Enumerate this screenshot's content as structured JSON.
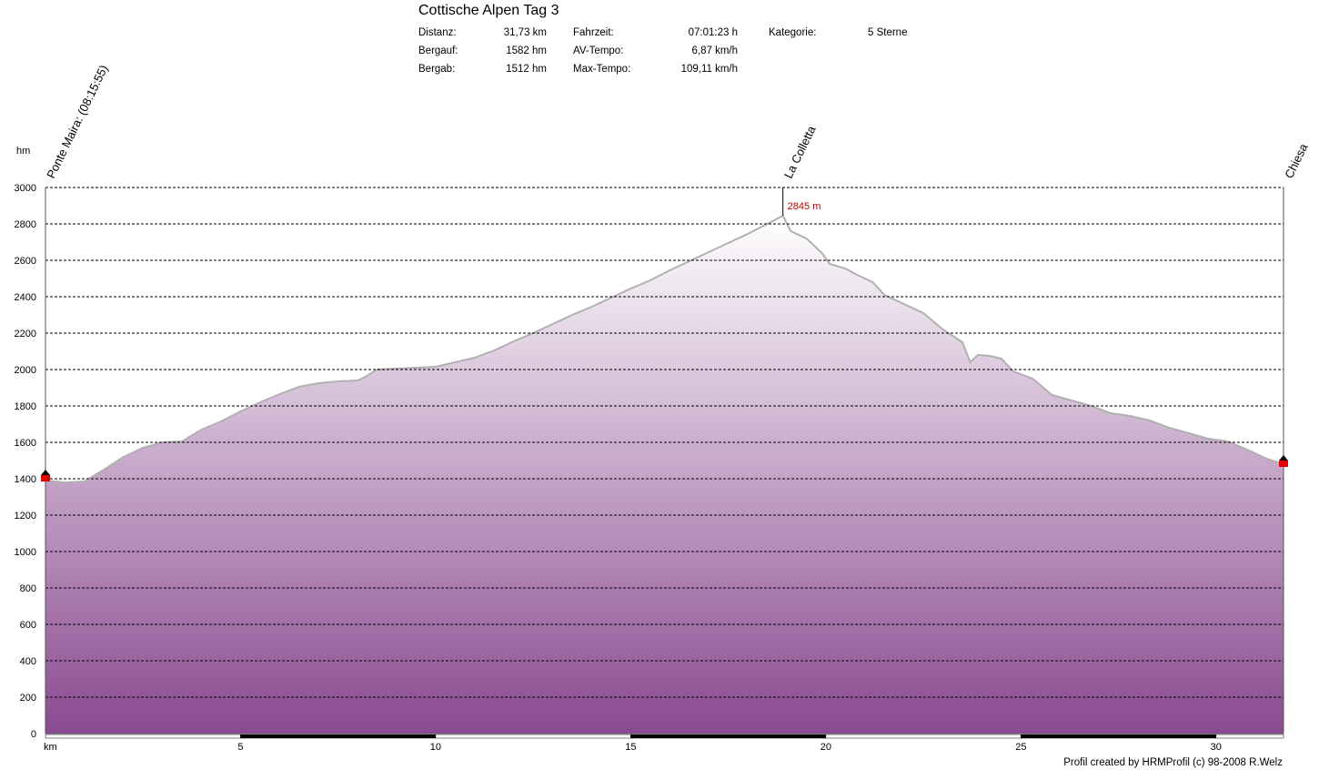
{
  "header": {
    "title": "Cottische Alpen Tag 3",
    "stats": [
      {
        "label": "Distanz:",
        "value": "31,73 km"
      },
      {
        "label": "Bergauf:",
        "value": "1582 hm"
      },
      {
        "label": "Bergab:",
        "value": "1512 hm"
      },
      {
        "label": "Fahrzeit:",
        "value": "07:01:23 h"
      },
      {
        "label": "AV-Tempo:",
        "value": "6,87 km/h"
      },
      {
        "label": "Max-Tempo:",
        "value": "109,11 km/h"
      },
      {
        "label": "Kategorie:",
        "value": "5 Sterne"
      }
    ]
  },
  "footer": {
    "credit": "Profil created by HRMProfil (c) 98-2008 R.Welz"
  },
  "colors": {
    "fill_top": "#ffffff",
    "fill_bottom": "#8a4a90",
    "profile_line": "#b0b0b0",
    "grid": "#000000",
    "marker": "#e00000",
    "peak_label": "#c00000"
  },
  "chart_data": {
    "type": "area",
    "ylabel": "hm",
    "xlabel": "km",
    "xlim": [
      0,
      31.73
    ],
    "ylim": [
      0,
      3000
    ],
    "yticks": [
      "0",
      "200",
      "400",
      "600",
      "800",
      "1000",
      "1200",
      "1400",
      "1600",
      "1800",
      "2000",
      "2200",
      "2400",
      "2600",
      "2800",
      "3000"
    ],
    "xticks": [
      "5",
      "10",
      "15",
      "20",
      "25",
      "30"
    ],
    "grid": true,
    "waypoints": [
      {
        "name": "Ponte Maira: (08:15:55)",
        "km": 0
      },
      {
        "name": "La Colletta",
        "km": 18.9
      },
      {
        "name": "Chiesa",
        "km": 31.73
      }
    ],
    "peak_label": "2845 m",
    "peak": {
      "km": 18.9,
      "elevation": 2845
    },
    "series": [
      {
        "x": [
          0,
          0.5,
          1.0,
          1.5,
          2.0,
          2.5,
          3.0,
          3.5,
          4.0,
          4.5,
          5.0,
          5.5,
          6.0,
          6.5,
          7.0,
          7.5,
          8.0,
          8.2,
          8.5,
          9.0,
          9.5,
          10.0,
          10.5,
          11.0,
          11.5,
          12.0,
          12.5,
          13.0,
          13.5,
          14.0,
          14.5,
          15.0,
          15.5,
          16.0,
          16.5,
          17.0,
          17.5,
          18.0,
          18.5,
          18.9,
          19.1,
          19.5,
          19.9,
          20.1,
          20.5,
          20.8,
          21.2,
          21.5,
          22.0,
          22.5,
          23.0,
          23.5,
          23.7,
          23.9,
          24.2,
          24.5,
          24.8,
          25.3,
          25.8,
          26.3,
          26.8,
          27.3,
          27.8,
          28.3,
          28.8,
          29.3,
          29.8,
          30.3,
          30.8,
          31.3,
          31.73
        ],
        "y": [
          1390,
          1380,
          1385,
          1450,
          1520,
          1570,
          1600,
          1605,
          1670,
          1715,
          1770,
          1820,
          1865,
          1905,
          1925,
          1935,
          1940,
          1960,
          2000,
          2005,
          2010,
          2015,
          2040,
          2065,
          2105,
          2155,
          2200,
          2250,
          2300,
          2345,
          2395,
          2445,
          2490,
          2545,
          2595,
          2645,
          2695,
          2745,
          2800,
          2845,
          2760,
          2720,
          2640,
          2580,
          2555,
          2520,
          2480,
          2410,
          2360,
          2310,
          2220,
          2150,
          2040,
          2080,
          2075,
          2060,
          1990,
          1950,
          1860,
          1830,
          1800,
          1760,
          1745,
          1720,
          1680,
          1650,
          1620,
          1605,
          1560,
          1510,
          1480
        ]
      }
    ],
    "markers": [
      {
        "km": 0,
        "elevation": 1410
      },
      {
        "km": 31.73,
        "elevation": 1490
      }
    ]
  }
}
